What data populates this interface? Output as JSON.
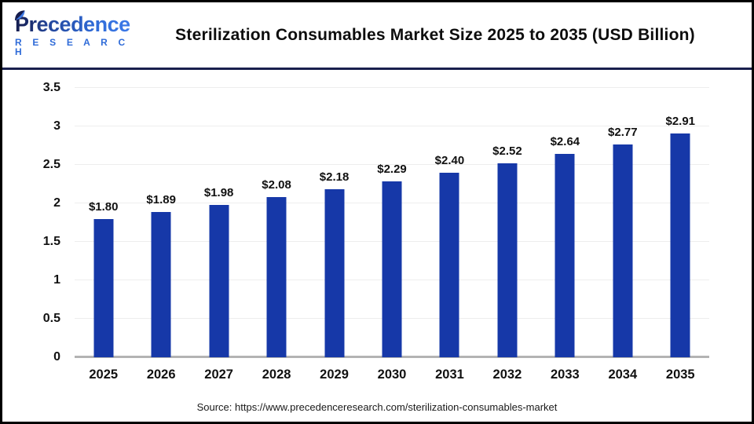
{
  "header": {
    "logo": {
      "name": "Precedence",
      "subtitle": "R E S E A R C H"
    },
    "title": "Sterilization Consumables Market Size 2025 to 2035 (USD Billion)"
  },
  "chart_data": {
    "type": "bar",
    "title": "Sterilization Consumables Market Size 2025 to 2035 (USD Billion)",
    "unit": "USD Billion",
    "categories": [
      "2025",
      "2026",
      "2027",
      "2028",
      "2029",
      "2030",
      "2031",
      "2032",
      "2033",
      "2034",
      "2035"
    ],
    "values": [
      1.8,
      1.89,
      1.98,
      2.08,
      2.18,
      2.29,
      2.4,
      2.52,
      2.64,
      2.77,
      2.91
    ],
    "bar_labels": [
      "$1.80",
      "$1.89",
      "$1.98",
      "$2.08",
      "$2.18",
      "$2.29",
      "$2.40",
      "$2.52",
      "$2.64",
      "$2.77",
      "$2.91"
    ],
    "xlabel": "",
    "ylabel": "",
    "ylim": [
      0,
      3.5
    ],
    "yticks": [
      0,
      0.5,
      1,
      1.5,
      2,
      2.5,
      3,
      3.5
    ],
    "ytick_labels": [
      "0",
      "0.5",
      "1",
      "1.5",
      "2",
      "2.5",
      "3",
      "3.5"
    ],
    "grid": true,
    "legend": "none"
  },
  "footer": {
    "source": "Source: https://www.precedenceresearch.com/sterilization-consumables-market"
  },
  "colors": {
    "bar": "#1638a8",
    "divider": "#191f4d",
    "gridline": "#ededed",
    "baseline": "#b3b3b3",
    "logo_navy": "#151c4e",
    "logo_blue": "#2f6bd8",
    "title_text": "#0d0d0d",
    "frame_border": "#000000"
  }
}
